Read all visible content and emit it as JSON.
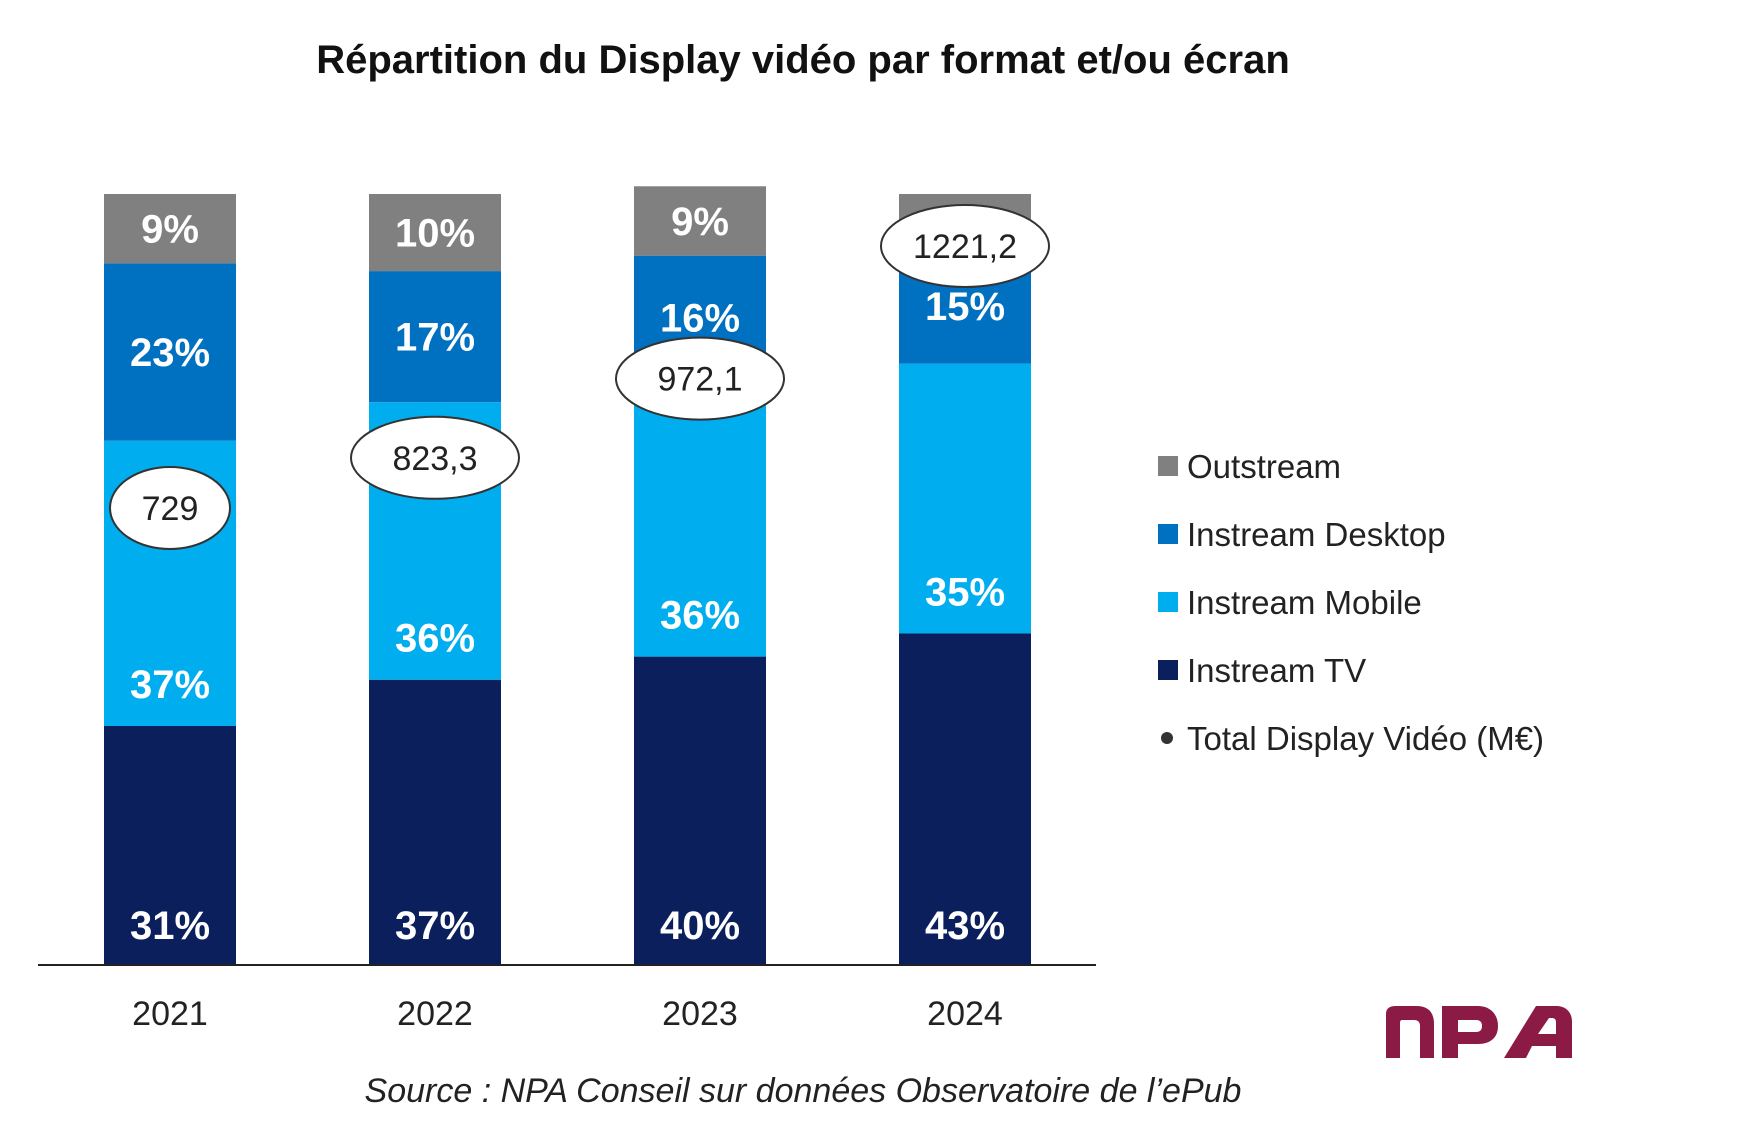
{
  "chart_data": {
    "type": "bar",
    "stacked": true,
    "percent": true,
    "title": "Répartition du Display vidéo par format et/ou écran",
    "categories": [
      "2021",
      "2022",
      "2023",
      "2024"
    ],
    "series": [
      {
        "name": "Instream TV",
        "color": "#0a1f5c",
        "values": [
          31,
          37,
          40,
          43
        ],
        "labels": [
          "31%",
          "37%",
          "40%",
          "43%"
        ]
      },
      {
        "name": "Instream Mobile",
        "color": "#00adef",
        "values": [
          37,
          36,
          36,
          35
        ],
        "labels": [
          "37%",
          "36%",
          "36%",
          "35%"
        ]
      },
      {
        "name": "Instream Desktop",
        "color": "#0070c0",
        "values": [
          23,
          17,
          16,
          15
        ],
        "labels": [
          "23%",
          "17%",
          "16%",
          "15%"
        ]
      },
      {
        "name": "Outstream",
        "color": "#808080",
        "values": [
          9,
          10,
          9,
          7
        ],
        "labels": [
          "9%",
          "10%",
          "9%",
          ""
        ]
      }
    ],
    "totals": {
      "name": "Total Display Vidéo (M€)",
      "values": [
        729,
        823.3,
        972.1,
        1221.2
      ],
      "labels": [
        "729",
        "823,3",
        "972,1",
        "1221,2"
      ]
    },
    "ylim": [
      0,
      100
    ],
    "legend_position": "right",
    "legend_order": [
      "Outstream",
      "Instream Desktop",
      "Instream Mobile",
      "Instream TV",
      "Total Display Vidéo (M€)"
    ],
    "source": "Source : NPA Conseil sur données Observatoire de l’ePub"
  },
  "logo": {
    "text": "npa",
    "color": "#8b1a45"
  }
}
